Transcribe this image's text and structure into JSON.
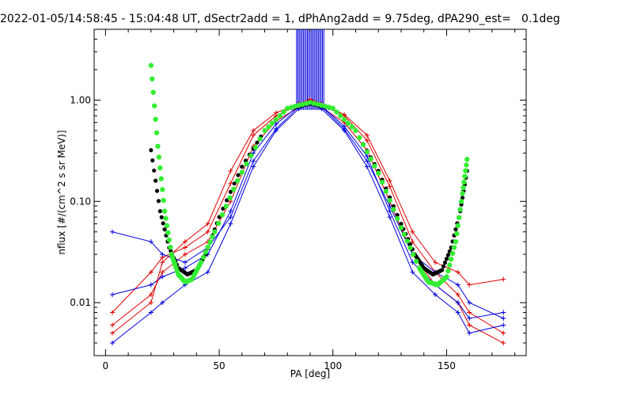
{
  "chart_data": {
    "type": "line",
    "title": "2022-01-05/14:58:45 - 15:04:48 UT, dSectr2add = 1, dPhAng2add = 9.75deg, dPA290_est=   0.1deg",
    "xlabel": "PA [deg]",
    "ylabel": "nflux [#/(cm^2 s sr MeV)]",
    "xlim": [
      -5,
      185
    ],
    "ylim": [
      0.003,
      5.0
    ],
    "yscale": "log",
    "x_ticks": [
      {
        "value": 0,
        "label": "0"
      },
      {
        "value": 50,
        "label": "50"
      },
      {
        "value": 100,
        "label": "100"
      },
      {
        "value": 150,
        "label": "150"
      }
    ],
    "y_ticks": [
      {
        "value": 0.01,
        "label": "0.01"
      },
      {
        "value": 0.1,
        "label": "0.10"
      },
      {
        "value": 1.0,
        "label": "1.00"
      }
    ],
    "grid": false,
    "legend": "none",
    "colors": {
      "red_series": "#e00000",
      "blue_series": "#0000e0",
      "fit_black": "#000000",
      "fit_green": "#33ee33"
    },
    "series": [
      {
        "color": "red",
        "style": "line+plus",
        "x": [
          3,
          20,
          25,
          35,
          45,
          55,
          65,
          75,
          85,
          90,
          95,
          105,
          115,
          125,
          135,
          145,
          155,
          160,
          175
        ],
        "y": [
          0.006,
          0.012,
          0.02,
          0.03,
          0.04,
          0.1,
          0.35,
          0.62,
          0.85,
          0.95,
          0.85,
          0.6,
          0.32,
          0.1,
          0.03,
          0.015,
          0.01,
          0.006,
          0.004
        ]
      },
      {
        "color": "red",
        "style": "line+plus",
        "x": [
          3,
          20,
          25,
          35,
          45,
          55,
          65,
          75,
          85,
          90,
          95,
          105,
          115,
          125,
          135,
          145,
          155,
          160,
          175
        ],
        "y": [
          0.008,
          0.02,
          0.028,
          0.035,
          0.05,
          0.15,
          0.45,
          0.7,
          0.9,
          1.0,
          0.9,
          0.7,
          0.4,
          0.14,
          0.04,
          0.02,
          0.012,
          0.008,
          0.005
        ]
      },
      {
        "color": "blue",
        "style": "line+plus",
        "x": [
          3,
          20,
          25,
          35,
          45,
          55,
          65,
          75,
          85,
          90,
          95,
          105,
          115,
          125,
          135,
          145,
          155,
          160,
          175
        ],
        "y": [
          0.004,
          0.008,
          0.01,
          0.015,
          0.02,
          0.06,
          0.22,
          0.5,
          0.82,
          0.92,
          0.82,
          0.5,
          0.22,
          0.07,
          0.02,
          0.012,
          0.008,
          0.005,
          0.006
        ]
      },
      {
        "color": "blue",
        "style": "line+plus",
        "x": [
          3,
          20,
          25,
          35,
          45,
          55,
          65,
          75,
          85,
          90,
          95,
          105,
          115,
          125,
          135,
          145,
          155,
          160,
          175
        ],
        "y": [
          0.012,
          0.015,
          0.018,
          0.022,
          0.03,
          0.08,
          0.3,
          0.58,
          0.88,
          0.98,
          0.88,
          0.55,
          0.28,
          0.08,
          0.025,
          0.015,
          0.01,
          0.007,
          0.008
        ]
      },
      {
        "color": "blue",
        "style": "line+plus",
        "x": [
          3,
          20,
          25,
          35,
          45,
          55,
          65,
          75,
          85,
          90,
          95,
          105,
          115,
          125,
          135,
          145,
          155,
          160,
          175
        ],
        "y": [
          0.05,
          0.04,
          0.03,
          0.025,
          0.035,
          0.07,
          0.25,
          0.52,
          0.86,
          0.96,
          0.86,
          0.52,
          0.25,
          0.09,
          0.03,
          0.02,
          0.015,
          0.01,
          0.007
        ]
      },
      {
        "color": "red",
        "style": "line+plus",
        "x": [
          3,
          20,
          25,
          35,
          45,
          55,
          65,
          75,
          85,
          90,
          95,
          105,
          115,
          125,
          135,
          145,
          155,
          160,
          175
        ],
        "y": [
          0.005,
          0.01,
          0.025,
          0.04,
          0.06,
          0.2,
          0.5,
          0.75,
          0.92,
          1.02,
          0.92,
          0.72,
          0.45,
          0.16,
          0.05,
          0.025,
          0.02,
          0.015,
          0.017
        ]
      }
    ],
    "fits": [
      {
        "name": "",
        "color": "black",
        "x": [
          20,
          24,
          28,
          32,
          36,
          40,
          44,
          50,
          60,
          70,
          80,
          90,
          100,
          110,
          120,
          130,
          136,
          140,
          144,
          148,
          152,
          156,
          159
        ],
        "y": [
          0.32,
          0.08,
          0.035,
          0.022,
          0.019,
          0.021,
          0.03,
          0.07,
          0.22,
          0.5,
          0.82,
          0.92,
          0.82,
          0.5,
          0.2,
          0.06,
          0.03,
          0.022,
          0.019,
          0.021,
          0.035,
          0.08,
          0.2
        ]
      },
      {
        "name": "",
        "color": "green",
        "x": [
          20,
          23,
          26,
          29,
          32,
          35,
          38,
          42,
          48,
          58,
          70,
          80,
          90,
          100,
          110,
          120,
          130,
          138,
          142,
          146,
          150,
          154,
          157,
          159
        ],
        "y": [
          2.2,
          0.35,
          0.08,
          0.03,
          0.019,
          0.016,
          0.017,
          0.025,
          0.05,
          0.16,
          0.5,
          0.83,
          0.95,
          0.83,
          0.5,
          0.19,
          0.055,
          0.022,
          0.016,
          0.015,
          0.018,
          0.04,
          0.12,
          0.26
        ]
      }
    ],
    "spikes": {
      "color": "blue",
      "x_range": [
        84,
        96
      ],
      "from_y": 0.8,
      "to_y": 5.0
    }
  }
}
